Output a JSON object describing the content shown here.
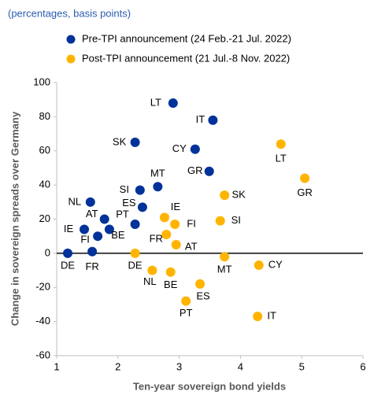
{
  "chart_data": {
    "type": "scatter",
    "subtitle": "(percentages, basis points)",
    "xlabel": "Ten-year sovereign bond yields",
    "ylabel": "Change in sovereign spreads over Germany",
    "xlim": [
      1,
      6
    ],
    "xticks": [
      1,
      2,
      3,
      4,
      5,
      6
    ],
    "ylim": [
      -60,
      100
    ],
    "yticks": [
      -60,
      -40,
      -20,
      0,
      20,
      40,
      60,
      80,
      100
    ],
    "grid": false,
    "legend": "top-left",
    "series": [
      {
        "name": "Pre-TPI announcement (24 Feb.-21 Jul. 2022)",
        "color": "#003299",
        "labels": [
          "LT",
          "IT",
          "SK",
          "CY",
          "GR",
          "MT",
          "SI",
          "ES",
          "NL",
          "AT",
          "PT",
          "IE",
          "BE",
          "FI",
          "DE",
          "FR"
        ],
        "x": [
          2.9,
          3.55,
          2.28,
          3.26,
          3.49,
          2.65,
          2.36,
          2.4,
          1.55,
          1.78,
          2.28,
          1.45,
          1.86,
          1.67,
          1.18,
          1.58
        ],
        "values": [
          88,
          78,
          65,
          61,
          48,
          39,
          37,
          27,
          30,
          20,
          17,
          14,
          14,
          10,
          0,
          1
        ]
      },
      {
        "name": "Post-TPI announcement (21 Jul.-8 Nov. 2022)",
        "color": "#ffb400",
        "labels": [
          "LT",
          "GR",
          "SK",
          "SI",
          "IE",
          "FI",
          "FR",
          "AT",
          "DE",
          "MT",
          "CY",
          "NL",
          "BE",
          "ES",
          "PT",
          "IT"
        ],
        "x": [
          4.66,
          5.05,
          3.74,
          3.67,
          2.76,
          2.93,
          2.79,
          2.95,
          2.28,
          3.74,
          4.3,
          2.56,
          2.86,
          3.34,
          3.11,
          4.28
        ],
        "values": [
          64,
          44,
          34,
          19,
          21,
          17,
          11,
          5,
          0,
          -2,
          -7,
          -10,
          -11,
          -18,
          -28,
          -37
        ]
      }
    ]
  }
}
